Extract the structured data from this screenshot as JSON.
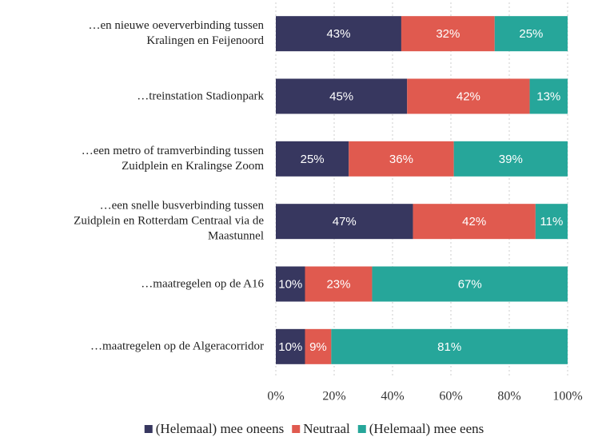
{
  "chart_data": {
    "type": "stacked_barh",
    "categories": [
      "…en nieuwe oeververbinding tussen\nKralingen en Feijenoord",
      "…treinstation Stadionpark",
      "…een metro of tramverbinding tussen\nZuidplein en Kralingse Zoom",
      "…een snelle busverbinding tussen\nZuidplein en Rotterdam Centraal via de\nMaastunnel",
      "…maatregelen op de A16",
      "…maatregelen op de Algeracorridor"
    ],
    "series": [
      {
        "name": "(Helemaal) mee oneens",
        "color": "#37375f",
        "values": [
          43,
          45,
          25,
          47,
          10,
          10
        ],
        "value_labels": [
          "43%",
          "45%",
          "25%",
          "47%",
          "10%",
          "10%"
        ]
      },
      {
        "name": "Neutraal",
        "color": "#e05a4f",
        "values": [
          32,
          42,
          36,
          42,
          23,
          9
        ],
        "value_labels": [
          "32%",
          "42%",
          "36%",
          "42%",
          "23%",
          "9%"
        ]
      },
      {
        "name": "(Helemaal) mee eens",
        "color": "#26a69a",
        "values": [
          25,
          13,
          39,
          11,
          67,
          81
        ],
        "value_labels": [
          "25%",
          "13%",
          "39%",
          "11%",
          "67%",
          "81%"
        ]
      }
    ],
    "xlim": [
      0,
      100
    ],
    "xticks": [
      {
        "value": 0,
        "label": "0%"
      },
      {
        "value": 20,
        "label": "20%"
      },
      {
        "value": 40,
        "label": "40%"
      },
      {
        "value": 60,
        "label": "60%"
      },
      {
        "value": 80,
        "label": "80%"
      },
      {
        "value": 100,
        "label": "100%"
      }
    ],
    "grid": true,
    "legend": "bottom"
  }
}
